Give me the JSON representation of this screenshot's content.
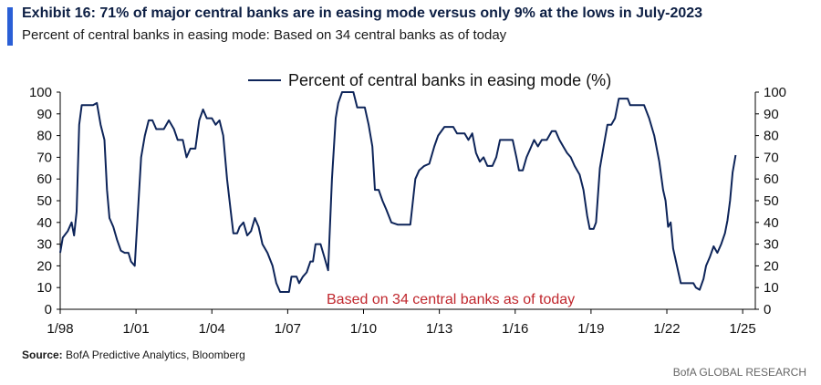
{
  "header": {
    "title": "Exhibit 16: 71% of major central banks are in easing mode versus only 9% at the lows in July-2023",
    "subtitle": "Percent of central banks in easing mode: Based on 34 central banks as of today"
  },
  "footer": {
    "source_label": "Source:",
    "source_text": " BofA Predictive Analytics, Bloomberg",
    "brand": "BofA GLOBAL RESEARCH"
  },
  "colors": {
    "line": "#0d2459",
    "annotation": "#c0272d",
    "accent": "#2A5FD6"
  },
  "chart_data": {
    "type": "line",
    "title": "",
    "xlabel": "",
    "ylabel": "",
    "ylim": [
      0,
      100
    ],
    "yticks": [
      0,
      10,
      20,
      30,
      40,
      50,
      60,
      70,
      80,
      90,
      100
    ],
    "xlim": [
      1998.0,
      2025.5
    ],
    "xticks": [
      {
        "label": "1/98",
        "x": 1998.0
      },
      {
        "label": "1/01",
        "x": 2001.0
      },
      {
        "label": "1/04",
        "x": 2004.0
      },
      {
        "label": "1/07",
        "x": 2007.0
      },
      {
        "label": "1/10",
        "x": 2010.0
      },
      {
        "label": "1/13",
        "x": 2013.0
      },
      {
        "label": "1/16",
        "x": 2016.0
      },
      {
        "label": "1/19",
        "x": 2019.0
      },
      {
        "label": "1/22",
        "x": 2022.0
      },
      {
        "label": "1/25",
        "x": 2025.0
      }
    ],
    "legend": {
      "position": "top-center"
    },
    "annotation": "Based on 34 central banks as of today",
    "series": [
      {
        "name": "Percent of central banks in easing mode (%)",
        "points": [
          [
            1998.0,
            26
          ],
          [
            1998.1,
            33
          ],
          [
            1998.3,
            36
          ],
          [
            1998.45,
            40
          ],
          [
            1998.55,
            34
          ],
          [
            1998.65,
            45
          ],
          [
            1998.75,
            85
          ],
          [
            1998.85,
            94
          ],
          [
            1999.0,
            94
          ],
          [
            1999.3,
            94
          ],
          [
            1999.45,
            95
          ],
          [
            1999.6,
            85
          ],
          [
            1999.75,
            78
          ],
          [
            1999.85,
            55
          ],
          [
            1999.95,
            42
          ],
          [
            2000.1,
            38
          ],
          [
            2000.25,
            32
          ],
          [
            2000.4,
            27
          ],
          [
            2000.55,
            26
          ],
          [
            2000.7,
            26
          ],
          [
            2000.8,
            22
          ],
          [
            2000.95,
            20
          ],
          [
            2001.05,
            40
          ],
          [
            2001.2,
            70
          ],
          [
            2001.35,
            80
          ],
          [
            2001.5,
            87
          ],
          [
            2001.65,
            87
          ],
          [
            2001.8,
            83
          ],
          [
            2001.95,
            83
          ],
          [
            2002.1,
            83
          ],
          [
            2002.3,
            87
          ],
          [
            2002.5,
            83
          ],
          [
            2002.65,
            78
          ],
          [
            2002.85,
            78
          ],
          [
            2003.0,
            70
          ],
          [
            2003.15,
            74
          ],
          [
            2003.35,
            74
          ],
          [
            2003.5,
            87
          ],
          [
            2003.65,
            92
          ],
          [
            2003.8,
            88
          ],
          [
            2004.0,
            88
          ],
          [
            2004.15,
            85
          ],
          [
            2004.3,
            87
          ],
          [
            2004.45,
            80
          ],
          [
            2004.6,
            60
          ],
          [
            2004.75,
            45
          ],
          [
            2004.85,
            35
          ],
          [
            2005.0,
            35
          ],
          [
            2005.1,
            38
          ],
          [
            2005.25,
            40
          ],
          [
            2005.4,
            34
          ],
          [
            2005.55,
            36
          ],
          [
            2005.7,
            42
          ],
          [
            2005.85,
            38
          ],
          [
            2006.0,
            30
          ],
          [
            2006.2,
            26
          ],
          [
            2006.4,
            20
          ],
          [
            2006.55,
            12
          ],
          [
            2006.7,
            8
          ],
          [
            2006.9,
            8
          ],
          [
            2007.05,
            8
          ],
          [
            2007.15,
            15
          ],
          [
            2007.35,
            15
          ],
          [
            2007.45,
            12
          ],
          [
            2007.6,
            15
          ],
          [
            2007.75,
            17
          ],
          [
            2007.9,
            22
          ],
          [
            2008.0,
            22
          ],
          [
            2008.1,
            30
          ],
          [
            2008.3,
            30
          ],
          [
            2008.45,
            24
          ],
          [
            2008.6,
            18
          ],
          [
            2008.75,
            60
          ],
          [
            2008.9,
            88
          ],
          [
            2009.0,
            95
          ],
          [
            2009.15,
            100
          ],
          [
            2009.6,
            100
          ],
          [
            2009.75,
            93
          ],
          [
            2010.05,
            93
          ],
          [
            2010.2,
            85
          ],
          [
            2010.35,
            75
          ],
          [
            2010.45,
            55
          ],
          [
            2010.6,
            55
          ],
          [
            2010.75,
            50
          ],
          [
            2010.9,
            46
          ],
          [
            2011.1,
            40
          ],
          [
            2011.35,
            39
          ],
          [
            2011.85,
            39
          ],
          [
            2012.05,
            60
          ],
          [
            2012.2,
            64
          ],
          [
            2012.4,
            66
          ],
          [
            2012.6,
            67
          ],
          [
            2012.8,
            75
          ],
          [
            2012.95,
            80
          ],
          [
            2013.2,
            84
          ],
          [
            2013.55,
            84
          ],
          [
            2013.7,
            81
          ],
          [
            2014.0,
            81
          ],
          [
            2014.15,
            78
          ],
          [
            2014.3,
            81
          ],
          [
            2014.45,
            72
          ],
          [
            2014.6,
            68
          ],
          [
            2014.75,
            70
          ],
          [
            2014.9,
            66
          ],
          [
            2015.1,
            66
          ],
          [
            2015.25,
            70
          ],
          [
            2015.4,
            78
          ],
          [
            2015.9,
            78
          ],
          [
            2016.05,
            70
          ],
          [
            2016.15,
            64
          ],
          [
            2016.3,
            64
          ],
          [
            2016.45,
            70
          ],
          [
            2016.6,
            74
          ],
          [
            2016.75,
            78
          ],
          [
            2016.9,
            75
          ],
          [
            2017.05,
            78
          ],
          [
            2017.25,
            78
          ],
          [
            2017.45,
            82
          ],
          [
            2017.6,
            82
          ],
          [
            2017.75,
            78
          ],
          [
            2017.9,
            75
          ],
          [
            2018.05,
            72
          ],
          [
            2018.2,
            70
          ],
          [
            2018.35,
            66
          ],
          [
            2018.55,
            62
          ],
          [
            2018.7,
            55
          ],
          [
            2018.85,
            43
          ],
          [
            2018.95,
            37
          ],
          [
            2019.1,
            37
          ],
          [
            2019.2,
            40
          ],
          [
            2019.35,
            65
          ],
          [
            2019.5,
            75
          ],
          [
            2019.65,
            85
          ],
          [
            2019.8,
            85
          ],
          [
            2019.95,
            88
          ],
          [
            2020.1,
            97
          ],
          [
            2020.45,
            97
          ],
          [
            2020.55,
            94
          ],
          [
            2021.1,
            94
          ],
          [
            2021.3,
            88
          ],
          [
            2021.5,
            80
          ],
          [
            2021.7,
            68
          ],
          [
            2021.85,
            55
          ],
          [
            2021.95,
            50
          ],
          [
            2022.05,
            38
          ],
          [
            2022.15,
            40
          ],
          [
            2022.25,
            28
          ],
          [
            2022.4,
            20
          ],
          [
            2022.55,
            12
          ],
          [
            2023.05,
            12
          ],
          [
            2023.15,
            10
          ],
          [
            2023.3,
            9
          ],
          [
            2023.45,
            14
          ],
          [
            2023.55,
            20
          ],
          [
            2023.7,
            24
          ],
          [
            2023.85,
            29
          ],
          [
            2024.0,
            26
          ],
          [
            2024.15,
            30
          ],
          [
            2024.3,
            35
          ],
          [
            2024.4,
            41
          ],
          [
            2024.5,
            50
          ],
          [
            2024.6,
            63
          ],
          [
            2024.72,
            71
          ]
        ]
      }
    ]
  }
}
